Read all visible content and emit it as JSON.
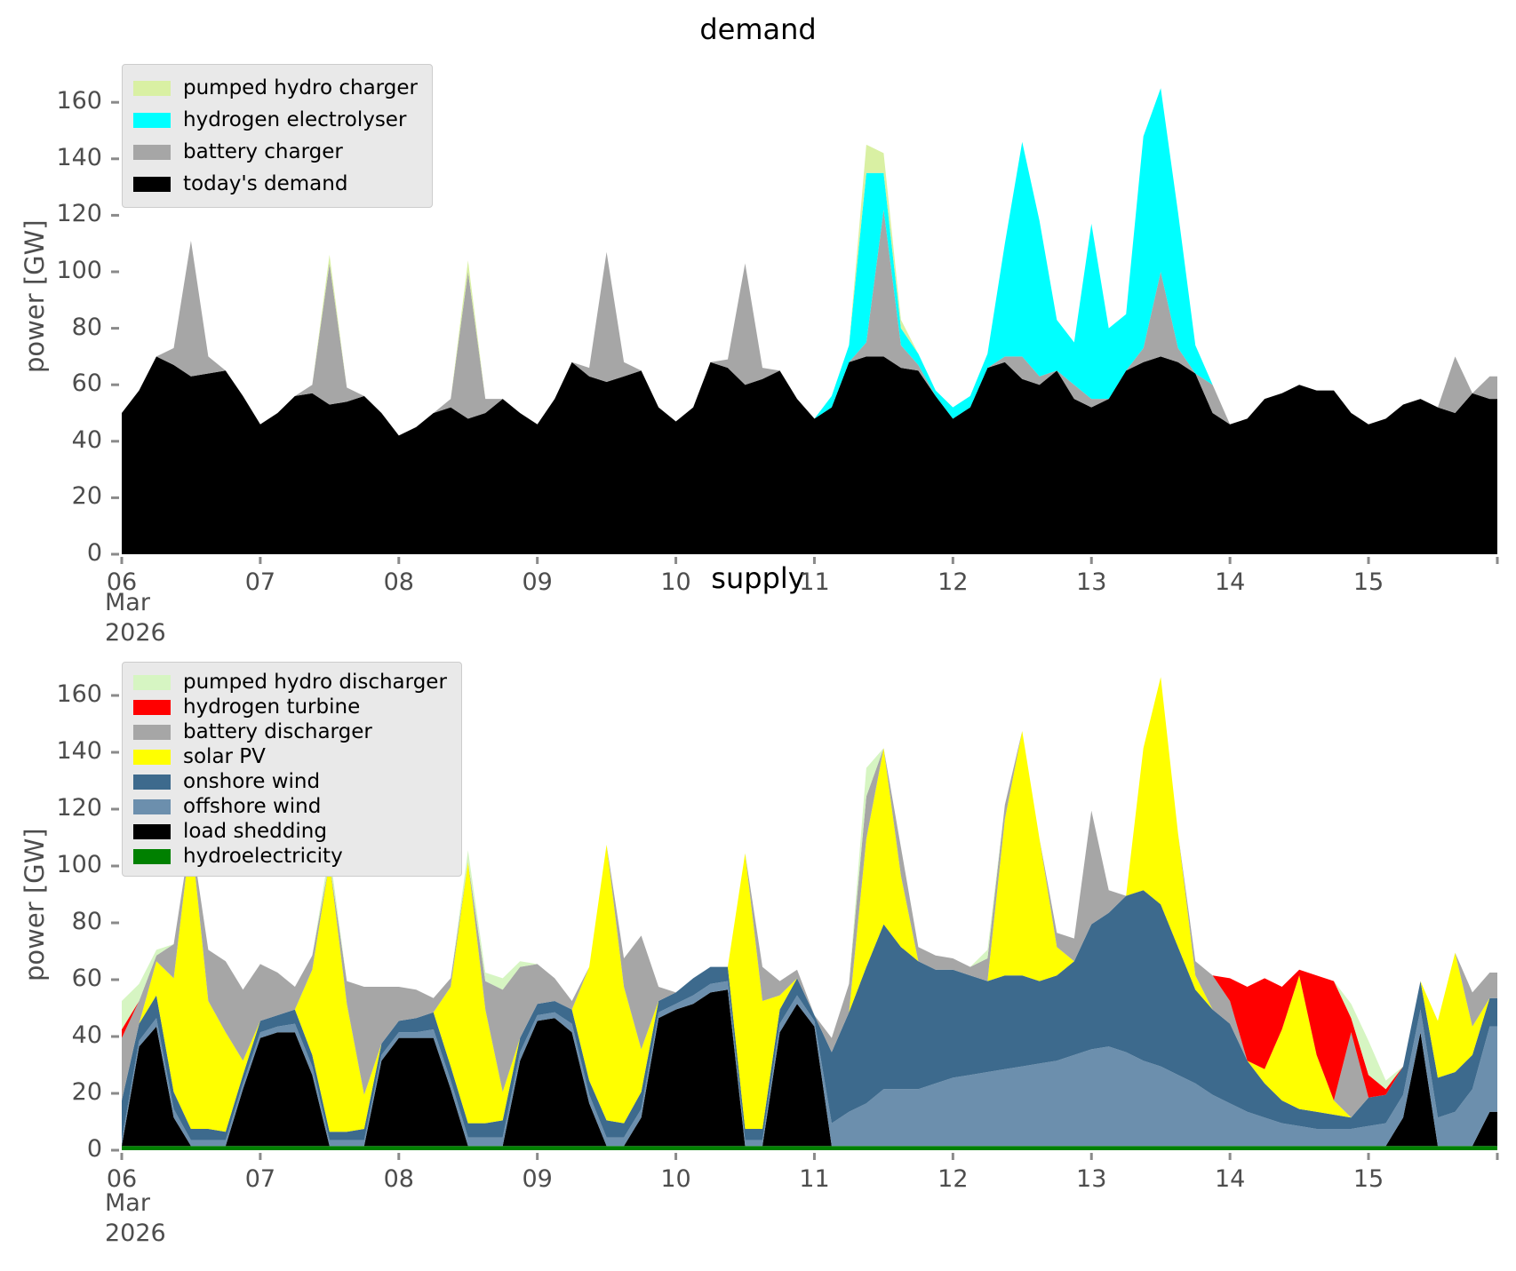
{
  "ylabel": "power [GW]",
  "x_axis": {
    "tick_labels": [
      "06",
      "07",
      "08",
      "09",
      "10",
      "11",
      "12",
      "13",
      "14",
      "15"
    ],
    "month_line1": "Mar",
    "month_line2": "2026"
  },
  "y_ticks": [
    "0",
    "20",
    "40",
    "60",
    "80",
    "100",
    "120",
    "140",
    "160"
  ],
  "chart_data": [
    {
      "type": "area",
      "title": "demand",
      "xlabel_unit": "day of March 2026",
      "ylim": [
        0,
        174
      ],
      "x_start": 6.0,
      "x_step": 0.125,
      "x_end": 15.93,
      "legend_order": [
        "pumped_hydro_charger",
        "hydrogen_electrolyser",
        "battery_charger",
        "todays_demand"
      ],
      "legend_labels": {
        "pumped_hydro_charger": "pumped hydro charger",
        "hydrogen_electrolyser": "hydrogen electrolyser",
        "battery_charger": "battery charger",
        "todays_demand": "today's demand"
      },
      "series": [
        {
          "key": "todays_demand",
          "name": "today's demand",
          "color": "#000000",
          "values": [
            50,
            58,
            70,
            67,
            63,
            64,
            65,
            56,
            46,
            50,
            56,
            57,
            53,
            54,
            56,
            50,
            42,
            45,
            50,
            52,
            48,
            50,
            55,
            50,
            46,
            55,
            68,
            63,
            61,
            63,
            65,
            52,
            47,
            52,
            68,
            66,
            60,
            62,
            65,
            55,
            48,
            52,
            68,
            70,
            70,
            66,
            65,
            56,
            48,
            52,
            66,
            68,
            62,
            60,
            65,
            55,
            52,
            55,
            65,
            68,
            70,
            68,
            64,
            50,
            46,
            48,
            55,
            57,
            60,
            58,
            58,
            50,
            46,
            48,
            53,
            55,
            52,
            50,
            57,
            55
          ]
        },
        {
          "key": "battery_charger",
          "name": "battery charger",
          "color": "#a6a6a6",
          "values": [
            0,
            0,
            0,
            6,
            48,
            6,
            0,
            0,
            0,
            0,
            0,
            3,
            50,
            5,
            0,
            0,
            0,
            0,
            0,
            3,
            52,
            5,
            0,
            0,
            0,
            0,
            0,
            3,
            46,
            5,
            0,
            0,
            0,
            0,
            0,
            3,
            43,
            4,
            0,
            0,
            0,
            0,
            0,
            5,
            52,
            8,
            2,
            0,
            0,
            0,
            0,
            2,
            8,
            3,
            0,
            5,
            3,
            0,
            0,
            5,
            30,
            5,
            0,
            10,
            0,
            0,
            0,
            0,
            0,
            0,
            0,
            0,
            0,
            0,
            0,
            0,
            0,
            20,
            0,
            8
          ]
        },
        {
          "key": "hydrogen_electrolyser",
          "name": "hydrogen electrolyser",
          "color": "#00ffff",
          "values": [
            0,
            0,
            0,
            0,
            0,
            0,
            0,
            0,
            0,
            0,
            0,
            0,
            0,
            0,
            0,
            0,
            0,
            0,
            0,
            0,
            0,
            0,
            0,
            0,
            0,
            0,
            0,
            0,
            0,
            0,
            0,
            0,
            0,
            0,
            0,
            0,
            0,
            0,
            0,
            0,
            0,
            4,
            6,
            60,
            13,
            6,
            4,
            2,
            4,
            4,
            5,
            40,
            76,
            55,
            18,
            15,
            62,
            25,
            20,
            75,
            65,
            48,
            10,
            0,
            0,
            0,
            0,
            0,
            0,
            0,
            0,
            0,
            0,
            0,
            0,
            0,
            0,
            0,
            0,
            0
          ]
        },
        {
          "key": "pumped_hydro_charger",
          "name": "pumped hydro charger",
          "color": "#d9f0a3",
          "values": [
            0,
            0,
            0,
            0,
            0,
            0,
            0,
            0,
            0,
            0,
            0,
            0,
            3,
            0,
            0,
            0,
            0,
            0,
            0,
            0,
            4,
            0,
            0,
            0,
            0,
            0,
            0,
            0,
            0,
            0,
            0,
            0,
            0,
            0,
            0,
            0,
            0,
            0,
            0,
            0,
            0,
            0,
            0,
            10,
            7,
            3,
            0,
            0,
            0,
            0,
            0,
            0,
            0,
            0,
            0,
            0,
            0,
            0,
            0,
            0,
            0,
            0,
            0,
            0,
            0,
            0,
            0,
            0,
            0,
            0,
            0,
            0,
            0,
            0,
            0,
            0,
            0,
            0,
            0,
            0
          ]
        }
      ]
    },
    {
      "type": "area",
      "title": "supply",
      "xlabel_unit": "day of March 2026",
      "ylim": [
        0,
        174
      ],
      "x_start": 6.0,
      "x_step": 0.125,
      "x_end": 15.93,
      "legend_order": [
        "pumped_hydro_discharger",
        "hydrogen_turbine",
        "battery_discharger",
        "solar_pv",
        "onshore_wind",
        "offshore_wind",
        "load_shedding",
        "hydroelectricity"
      ],
      "legend_labels": {
        "pumped_hydro_discharger": "pumped hydro discharger",
        "hydrogen_turbine": "hydrogen turbine",
        "battery_discharger": "battery discharger",
        "solar_pv": "solar PV",
        "onshore_wind": "onshore wind",
        "offshore_wind": "offshore wind",
        "load_shedding": "load shedding",
        "hydroelectricity": "hydroelectricity"
      },
      "series": [
        {
          "key": "hydroelectricity",
          "name": "hydroelectricity",
          "color": "#008000",
          "values": [
            1.5,
            1.5,
            1.5,
            1.5,
            1.5,
            1.5,
            1.5,
            1.5,
            1.5,
            1.5,
            1.5,
            1.5,
            1.5,
            1.5,
            1.5,
            1.5,
            1.5,
            1.5,
            1.5,
            1.5,
            1.5,
            1.5,
            1.5,
            1.5,
            1.5,
            1.5,
            1.5,
            1.5,
            1.5,
            1.5,
            1.5,
            1.5,
            1.5,
            1.5,
            1.5,
            1.5,
            1.5,
            1.5,
            1.5,
            1.5,
            1.5,
            1.5,
            1.5,
            1.5,
            1.5,
            1.5,
            1.5,
            1.5,
            1.5,
            1.5,
            1.5,
            1.5,
            1.5,
            1.5,
            1.5,
            1.5,
            1.5,
            1.5,
            1.5,
            1.5,
            1.5,
            1.5,
            1.5,
            1.5,
            1.5,
            1.5,
            1.5,
            1.5,
            1.5,
            1.5,
            1.5,
            1.5,
            1.5,
            1.5,
            1.5,
            1.5,
            1.5,
            1.5,
            1.5,
            1.5
          ]
        },
        {
          "key": "load_shedding",
          "name": "load shedding",
          "color": "#000000",
          "values": [
            0,
            35,
            42,
            10,
            0,
            0,
            0,
            20,
            38,
            40,
            40,
            25,
            0,
            0,
            0,
            30,
            38,
            38,
            38,
            20,
            0,
            0,
            0,
            30,
            44,
            45,
            40,
            15,
            0,
            0,
            10,
            45,
            48,
            50,
            54,
            55,
            0,
            0,
            40,
            50,
            42,
            0,
            0,
            0,
            0,
            0,
            0,
            0,
            0,
            0,
            0,
            0,
            0,
            0,
            0,
            0,
            0,
            0,
            0,
            0,
            0,
            0,
            0,
            0,
            0,
            0,
            0,
            0,
            0,
            0,
            0,
            0,
            0,
            0,
            10,
            40,
            0,
            0,
            0,
            12
          ]
        },
        {
          "key": "offshore_wind",
          "name": "offshore wind",
          "color": "#6c8fad",
          "values": [
            2,
            2,
            3,
            3,
            2,
            2,
            2,
            2,
            2,
            2,
            3,
            3,
            2,
            2,
            2,
            2,
            2,
            2,
            3,
            3,
            3,
            3,
            3,
            3,
            2,
            2,
            3,
            3,
            3,
            3,
            3,
            2,
            2,
            3,
            3,
            3,
            2,
            2,
            3,
            3,
            2,
            8,
            12,
            15,
            20,
            20,
            20,
            22,
            24,
            25,
            26,
            27,
            28,
            29,
            30,
            32,
            34,
            35,
            33,
            30,
            28,
            25,
            22,
            18,
            15,
            12,
            10,
            8,
            7,
            6,
            6,
            6,
            7,
            8,
            8,
            8,
            10,
            12,
            20,
            30
          ]
        },
        {
          "key": "onshore_wind",
          "name": "onshore wind",
          "color": "#3d6a8d",
          "values": [
            14,
            6,
            8,
            6,
            4,
            4,
            3,
            3,
            4,
            4,
            5,
            4,
            3,
            3,
            4,
            4,
            4,
            5,
            6,
            5,
            5,
            5,
            6,
            5,
            4,
            4,
            5,
            5,
            6,
            5,
            6,
            4,
            4,
            6,
            6,
            5,
            4,
            4,
            5,
            6,
            2,
            25,
            35,
            48,
            58,
            50,
            45,
            40,
            38,
            35,
            32,
            33,
            32,
            29,
            30,
            33,
            44,
            47,
            55,
            60,
            57,
            45,
            33,
            30,
            28,
            18,
            12,
            8,
            6,
            6,
            5,
            4,
            10,
            10,
            10,
            10,
            14,
            14,
            12,
            10
          ]
        },
        {
          "key": "solar_pv",
          "name": "solar PV",
          "color": "#ffff00",
          "values": [
            0,
            0,
            12,
            40,
            104,
            45,
            35,
            5,
            0,
            0,
            0,
            30,
            95,
            45,
            12,
            0,
            0,
            0,
            0,
            28,
            92,
            40,
            10,
            0,
            0,
            0,
            0,
            40,
            97,
            48,
            15,
            0,
            0,
            0,
            0,
            0,
            97,
            45,
            5,
            0,
            0,
            0,
            0,
            45,
            62,
            25,
            0,
            0,
            0,
            0,
            0,
            55,
            86,
            50,
            10,
            0,
            0,
            0,
            0,
            50,
            80,
            40,
            5,
            0,
            0,
            0,
            5,
            25,
            47,
            20,
            5,
            0,
            0,
            0,
            0,
            0,
            20,
            42,
            10,
            0
          ]
        },
        {
          "key": "battery_discharger",
          "name": "battery discharger",
          "color": "#a6a6a6",
          "values": [
            22,
            8,
            2,
            12,
            0,
            18,
            25,
            25,
            20,
            15,
            8,
            5,
            0,
            8,
            38,
            20,
            12,
            10,
            5,
            3,
            0,
            10,
            36,
            25,
            14,
            8,
            3,
            0,
            0,
            10,
            40,
            5,
            0,
            0,
            0,
            0,
            0,
            12,
            5,
            3,
            0,
            5,
            10,
            15,
            0,
            10,
            5,
            5,
            4,
            3,
            8,
            5,
            0,
            0,
            5,
            8,
            40,
            8,
            0,
            0,
            0,
            0,
            5,
            12,
            8,
            0,
            0,
            0,
            0,
            0,
            0,
            30,
            0,
            0,
            0,
            0,
            0,
            0,
            12,
            9
          ]
        },
        {
          "key": "hydrogen_turbine",
          "name": "hydrogen turbine",
          "color": "#ff0000",
          "values": [
            3,
            0,
            0,
            0,
            0,
            0,
            0,
            0,
            0,
            0,
            0,
            0,
            0,
            0,
            0,
            0,
            0,
            0,
            0,
            0,
            0,
            0,
            0,
            0,
            0,
            0,
            0,
            0,
            0,
            0,
            0,
            0,
            0,
            0,
            0,
            0,
            0,
            0,
            0,
            0,
            0,
            0,
            0,
            0,
            0,
            0,
            0,
            0,
            0,
            0,
            0,
            0,
            0,
            0,
            0,
            0,
            0,
            0,
            0,
            0,
            0,
            0,
            0,
            0,
            8,
            26,
            32,
            15,
            2,
            28,
            42,
            5,
            8,
            2,
            0,
            0,
            0,
            0,
            0,
            0
          ]
        },
        {
          "key": "pumped_hydro_discharger",
          "name": "pumped hydro discharger",
          "color": "#d6f5c2",
          "values": [
            10,
            6,
            2,
            0,
            0,
            0,
            0,
            0,
            0,
            0,
            0,
            0,
            4,
            0,
            0,
            0,
            0,
            0,
            0,
            0,
            4,
            3,
            4,
            2,
            0,
            0,
            0,
            0,
            0,
            0,
            0,
            0,
            0,
            0,
            0,
            0,
            0,
            0,
            0,
            0,
            0,
            0,
            0,
            10,
            0,
            0,
            0,
            0,
            0,
            0,
            3,
            0,
            0,
            0,
            0,
            0,
            0,
            0,
            0,
            0,
            0,
            0,
            0,
            0,
            0,
            0,
            0,
            0,
            0,
            0,
            0,
            5,
            12,
            3,
            0,
            0,
            0,
            0,
            0,
            0
          ]
        }
      ]
    }
  ]
}
